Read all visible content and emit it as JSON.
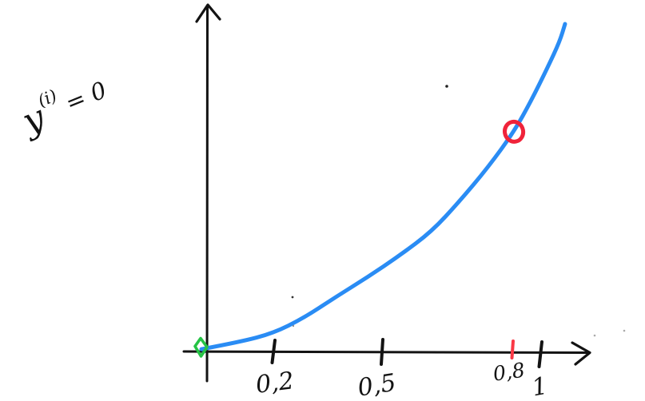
{
  "page": {
    "background": "#ffffff"
  },
  "chart_data": {
    "type": "line",
    "style": "hand-drawn freehand sketch",
    "title": "",
    "xlabel": "",
    "ylabel": "",
    "x_range": [
      0,
      1.08
    ],
    "y_range": [
      0,
      1.05
    ],
    "grid": false,
    "legend": false,
    "x_ticks": [
      {
        "value": 0.2,
        "label": "0,2",
        "color": "#131313"
      },
      {
        "value": 0.5,
        "label": "0,5",
        "color": "#131313"
      },
      {
        "value": 0.8,
        "label": "0,8",
        "color": "#fa3845"
      },
      {
        "value": 1,
        "label": "1",
        "color": "#131313"
      }
    ],
    "series": [
      {
        "name": "increasing convex curve",
        "color": "#2a8cf4",
        "points": [
          [
            0.0,
            0.007
          ],
          [
            0.107,
            0.029
          ],
          [
            0.2,
            0.056
          ],
          [
            0.284,
            0.102
          ],
          [
            0.373,
            0.166
          ],
          [
            0.462,
            0.227
          ],
          [
            0.551,
            0.293
          ],
          [
            0.64,
            0.366
          ],
          [
            0.718,
            0.459
          ],
          [
            0.796,
            0.561
          ],
          [
            0.869,
            0.671
          ],
          [
            0.918,
            0.768
          ],
          [
            0.962,
            0.866
          ],
          [
            0.996,
            0.946
          ],
          [
            1.011,
            1.0
          ]
        ]
      }
    ],
    "markers": [
      {
        "name": "circled-point",
        "x": 0.869,
        "y": 0.671,
        "shape": "circle-outline",
        "color": "#f0233a",
        "at_tick_label": "0,8"
      },
      {
        "name": "origin-marker",
        "x": 0,
        "y": 0,
        "shape": "diamond-outline",
        "color": "#25c345"
      }
    ],
    "annotation": {
      "text": "y⁽ⁱ⁾ = 0",
      "base": "y",
      "sup": "(i)",
      "rest": "= 0"
    },
    "colors": {
      "curve": "#2a8cf4",
      "ink": "#131313",
      "red": "#fa3845",
      "green": "#25c345"
    }
  }
}
